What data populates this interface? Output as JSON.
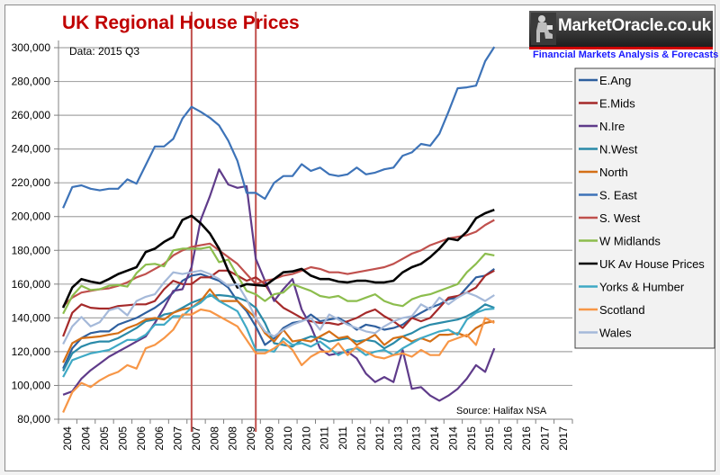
{
  "logo": {
    "brand": "MarketOracle.co.uk",
    "tagline": "Financial Markets Analysis & Forecasts",
    "icon": "statue-icon"
  },
  "chart_data": {
    "type": "line",
    "title": "UK Regional House Prices",
    "subtitle": "Data: 2015 Q3",
    "source": "Source: Halifax NSA",
    "xlabel": "",
    "ylabel": "",
    "ylim": [
      80000,
      300000
    ],
    "yticks": [
      80000,
      100000,
      120000,
      140000,
      160000,
      180000,
      200000,
      220000,
      240000,
      260000,
      280000,
      300000
    ],
    "ytick_labels": [
      "80,000",
      "100,000",
      "120,000",
      "140,000",
      "160,000",
      "180,000",
      "200,000",
      "220,000",
      "240,000",
      "260,000",
      "280,000",
      "300,000"
    ],
    "xtick_labels": [
      "2004",
      "2004",
      "2005",
      "2005",
      "2006",
      "2006",
      "2007",
      "2007",
      "2008",
      "2008",
      "2009",
      "2009",
      "2010",
      "2010",
      "2011",
      "2011",
      "2012",
      "2012",
      "2013",
      "2013",
      "2014",
      "2014",
      "2015",
      "2015",
      "2016",
      "2016",
      "2017",
      "2017"
    ],
    "x_periods_per_label": 2,
    "x_note": "quarterly data points, 2004 Q1 onward; axis labelled in half-years",
    "grid": "horizontal",
    "legend_position": "right",
    "annotations": [
      {
        "type": "vertical-line",
        "label": "2007 peak marker",
        "at_quarter_index": 14,
        "color": "#c0504d"
      },
      {
        "type": "vertical-line",
        "label": "2009 trough marker",
        "at_quarter_index": 21,
        "color": "#c0504d"
      }
    ],
    "series": [
      {
        "name": "E.Ang",
        "color": "#2e5f9e",
        "values": [
          110000,
          122000,
          128000,
          131000,
          132000,
          132000,
          136000,
          138000,
          140000,
          143000,
          146000,
          150000,
          155000,
          162000,
          165000,
          166000,
          164000,
          162000,
          158000,
          150000,
          144000,
          135000,
          124000,
          128000,
          134000,
          137000,
          138000,
          142000,
          138000,
          139000,
          140000,
          137000,
          133000,
          136000,
          135000,
          133000,
          134000,
          136000,
          140000,
          143000,
          146000,
          148000,
          151000,
          152000,
          158000,
          164000,
          165000,
          169000
        ]
      },
      {
        "name": "E.Mids",
        "color": "#a52a2a",
        "values": [
          129000,
          143000,
          148000,
          146000,
          145500,
          145500,
          147000,
          147500,
          148000,
          148000,
          150000,
          157000,
          162000,
          160000,
          160000,
          164000,
          164000,
          168000,
          168000,
          165000,
          162000,
          164000,
          160000,
          151000,
          146000,
          143000,
          140000,
          138000,
          137000,
          137000,
          136000,
          138000,
          140000,
          143000,
          145000,
          141000,
          138000,
          134000,
          140000,
          138000,
          140000,
          146000,
          152000,
          153000,
          155000,
          158000,
          165000,
          168000
        ]
      },
      {
        "name": "N.Ire",
        "color": "#5f3b8a",
        "values": [
          94500,
          96500,
          104000,
          109000,
          113000,
          117000,
          120000,
          123000,
          126000,
          129000,
          137000,
          146000,
          156000,
          157000,
          170000,
          198000,
          212000,
          228000,
          219000,
          217000,
          218000,
          175000,
          162000,
          150000,
          157000,
          163000,
          145000,
          135000,
          122000,
          118000,
          119000,
          120000,
          116000,
          107000,
          102000,
          105000,
          102000,
          121000,
          98000,
          99000,
          94000,
          91000,
          94000,
          98000,
          104000,
          112000,
          108000,
          122000
        ]
      },
      {
        "name": "N.West",
        "color": "#2a8aa8",
        "values": [
          108500,
          119000,
          123000,
          125000,
          126000,
          126000,
          128000,
          131000,
          134000,
          138000,
          139000,
          142000,
          143000,
          146000,
          149000,
          151000,
          153000,
          153500,
          153000,
          152000,
          150000,
          146000,
          137000,
          125000,
          124000,
          123000,
          127000,
          129000,
          128000,
          126000,
          127000,
          128000,
          126000,
          127000,
          126000,
          122000,
          125000,
          129000,
          131000,
          134000,
          136000,
          137000,
          138000,
          139000,
          141000,
          144000,
          148000,
          146000
        ]
      },
      {
        "name": "North",
        "color": "#d46f16",
        "values": [
          113500,
          125000,
          128000,
          128500,
          129000,
          130000,
          131000,
          134000,
          136000,
          139000,
          140000,
          139000,
          143000,
          145000,
          146000,
          150000,
          157000,
          150000,
          150000,
          150000,
          145000,
          140000,
          131000,
          126000,
          133000,
          126000,
          127000,
          126000,
          129000,
          132000,
          128000,
          129000,
          124000,
          127000,
          130000,
          124000,
          128000,
          129000,
          126000,
          128000,
          126000,
          130000,
          130000,
          131000,
          129000,
          134000,
          137000,
          138000
        ]
      },
      {
        "name": "S. East",
        "color": "#3d73b8",
        "values": [
          205000,
          217500,
          218500,
          216500,
          215500,
          216500,
          216500,
          222000,
          219500,
          230500,
          241500,
          241500,
          246000,
          258000,
          265000,
          262000,
          258500,
          254000,
          245000,
          233000,
          214000,
          214000,
          210500,
          220000,
          224000,
          224000,
          231000,
          227000,
          229000,
          225000,
          224000,
          225000,
          229000,
          225000,
          226000,
          228000,
          229000,
          236000,
          238000,
          243000,
          242000,
          249000,
          262000,
          276000,
          276500,
          277500,
          292000,
          300500
        ]
      },
      {
        "name": "S. West",
        "color": "#c0504d",
        "values": [
          147000,
          152000,
          155000,
          156000,
          157000,
          157500,
          159000,
          161000,
          164000,
          166000,
          169000,
          172000,
          177000,
          180000,
          182000,
          183000,
          184000,
          180000,
          176000,
          172000,
          166000,
          160000,
          162000,
          163000,
          165000,
          166000,
          168000,
          170000,
          169000,
          167000,
          167000,
          166000,
          167000,
          168000,
          169000,
          170000,
          172000,
          175000,
          178000,
          180000,
          183000,
          185000,
          187000,
          188000,
          189000,
          191000,
          195000,
          198000
        ]
      },
      {
        "name": "W Midlands",
        "color": "#8cbd4d",
        "values": [
          142500,
          153000,
          159000,
          156500,
          157000,
          159000,
          159500,
          158500,
          166500,
          171500,
          172000,
          170500,
          180000,
          181000,
          181000,
          181000,
          182000,
          173000,
          174500,
          165000,
          156000,
          154000,
          150000,
          154000,
          155000,
          160000,
          158000,
          156000,
          153000,
          152000,
          153000,
          150000,
          150000,
          152000,
          154000,
          150000,
          148000,
          147000,
          151000,
          153000,
          154000,
          156000,
          158000,
          160000,
          167000,
          172000,
          178000,
          177000
        ]
      },
      {
        "name": "UK Av House Prices",
        "color": "#000000",
        "values": [
          146000,
          158000,
          163000,
          161500,
          160500,
          163000,
          166000,
          168000,
          170000,
          179000,
          181000,
          185000,
          188000,
          198000,
          200500,
          196000,
          190000,
          181000,
          168000,
          158000,
          160000,
          159500,
          159000,
          163000,
          167000,
          167500,
          169000,
          165000,
          163000,
          163000,
          161500,
          161000,
          162000,
          162000,
          161000,
          161000,
          162000,
          167000,
          170000,
          172000,
          176000,
          181000,
          187000,
          186000,
          191000,
          199000,
          202000,
          204000
        ]
      },
      {
        "name": "Yorks & Humber",
        "color": "#3fa9c5",
        "values": [
          105000,
          115000,
          117000,
          119000,
          120000,
          121000,
          124000,
          127000,
          127000,
          130000,
          136000,
          136000,
          141000,
          141000,
          146000,
          149000,
          154000,
          150000,
          147000,
          144000,
          134000,
          121000,
          121000,
          120000,
          128000,
          124000,
          125000,
          123000,
          126000,
          122000,
          118000,
          121000,
          122000,
          118000,
          120000,
          121000,
          118000,
          122000,
          125000,
          128000,
          130000,
          132000,
          133000,
          130000,
          139000,
          143000,
          145000,
          145500
        ]
      },
      {
        "name": "Scotland",
        "color": "#f79646",
        "values": [
          84000,
          96000,
          101500,
          99000,
          103000,
          106000,
          108000,
          112000,
          110000,
          122000,
          124000,
          128000,
          133000,
          142000,
          142000,
          145000,
          144000,
          141000,
          138000,
          135000,
          127000,
          119000,
          119000,
          122000,
          126000,
          121000,
          112000,
          117000,
          120000,
          120000,
          125000,
          118000,
          123000,
          120000,
          117000,
          116000,
          118000,
          119000,
          117000,
          121000,
          118000,
          118000,
          126000,
          128000,
          130000,
          124000,
          140000,
          137000
        ]
      },
      {
        "name": "Wales",
        "color": "#a5b9d9",
        "values": [
          124500,
          135000,
          140500,
          135000,
          137500,
          144500,
          146000,
          141500,
          150000,
          152500,
          154000,
          161000,
          167000,
          166000,
          167000,
          168000,
          166000,
          163000,
          159000,
          160000,
          151000,
          140000,
          132000,
          129000,
          133000,
          136000,
          138000,
          140000,
          133000,
          142000,
          139000,
          136000,
          134000,
          132000,
          131000,
          135000,
          138000,
          140000,
          141000,
          148000,
          145000,
          152000,
          148000,
          152000,
          155000,
          153000,
          150000,
          153500
        ]
      }
    ]
  }
}
